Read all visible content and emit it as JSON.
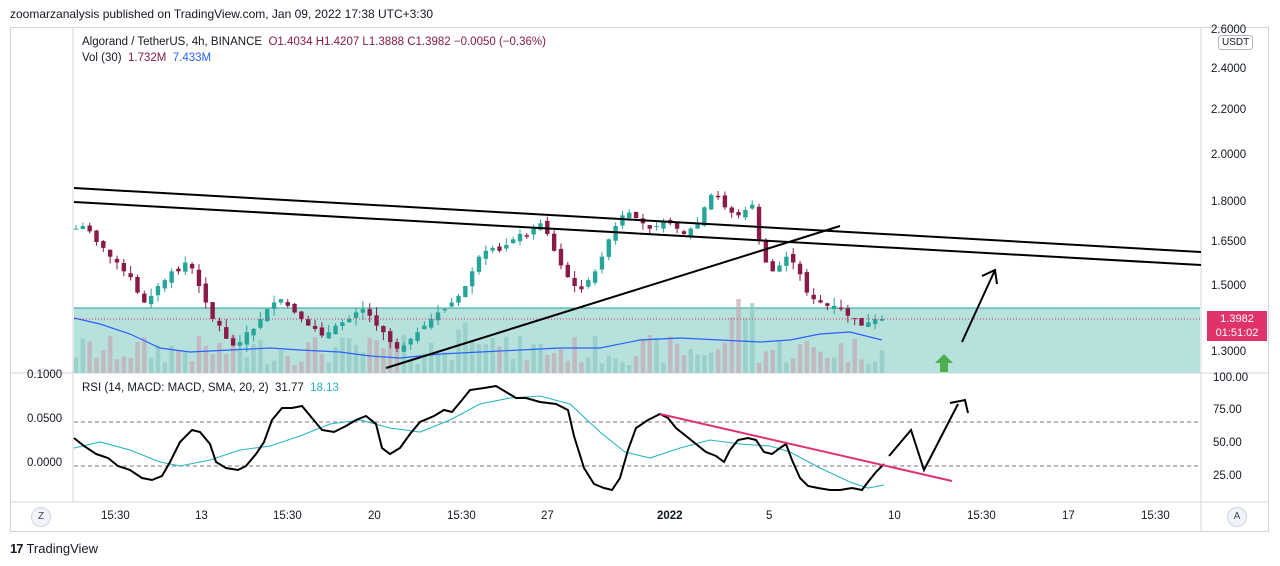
{
  "publisher_line": "zoomarzanalysis published on TradingView.com, Jan 09, 2022 17:38 UTC+3:30",
  "legend": {
    "symbol": "Algorand / TetherUS, 4h, BINANCE",
    "ohlc": "O1.4034  H1.4207  L1.3888  C1.3982  −0.0050 (−0.36%)",
    "vol_label": "Vol (30)",
    "vol_value_1": "1.732M",
    "vol_value_2": "7.433M",
    "rsi_label": "RSI (14, MACD: MACD, SMA, 20, 2)",
    "rsi_value_1": "31.77",
    "rsi_value_2": "18.13"
  },
  "currency_button": "USDT",
  "price_axis": [
    "2.6000",
    "2.4000",
    "2.2000",
    "2.0000",
    "1.8000",
    "1.6500",
    "1.5000",
    "1.3000"
  ],
  "price_tag": {
    "price": "1.3982",
    "countdown": "01:51:02"
  },
  "rsi_axis_right": [
    "100.00",
    "75.00",
    "50.00",
    "25.00"
  ],
  "rsi_axis_left": [
    "0.1000",
    "0.0500",
    "0.0000"
  ],
  "time_axis": [
    "15:30",
    "13",
    "15:30",
    "20",
    "15:30",
    "27",
    "2022",
    "5",
    "10",
    "15:30",
    "17",
    "15:30"
  ],
  "corner_buttons": {
    "left": "Z",
    "right": "A"
  },
  "brand": {
    "logo": "17",
    "name": "TradingView"
  },
  "colors": {
    "up": "#26a69a",
    "down": "#8a1a48",
    "zone": "#b2dfdb",
    "trend_pink": "#e0336a",
    "ma_blue": "#2962ff"
  },
  "chart_data": {
    "type": "candlestick",
    "price_ylim": [
      1.3,
      2.6
    ],
    "close_path": [
      1.7,
      1.71,
      1.69,
      1.65,
      1.63,
      1.6,
      1.58,
      1.55,
      1.53,
      1.48,
      1.45,
      1.47,
      1.5,
      1.52,
      1.55,
      1.55,
      1.58,
      1.56,
      1.5,
      1.45,
      1.4,
      1.38,
      1.34,
      1.32,
      1.33,
      1.36,
      1.37,
      1.4,
      1.43,
      1.45,
      1.46,
      1.44,
      1.42,
      1.4,
      1.38,
      1.37,
      1.35,
      1.36,
      1.38,
      1.39,
      1.4,
      1.42,
      1.43,
      1.41,
      1.38,
      1.36,
      1.33,
      1.31,
      1.32,
      1.34,
      1.36,
      1.38,
      1.4,
      1.42,
      1.43,
      1.45,
      1.47,
      1.5,
      1.55,
      1.6,
      1.62,
      1.63,
      1.62,
      1.64,
      1.66,
      1.68,
      1.67,
      1.7,
      1.72,
      1.68,
      1.62,
      1.57,
      1.53,
      1.5,
      1.49,
      1.52,
      1.55,
      1.6,
      1.66,
      1.71,
      1.75,
      1.76,
      1.74,
      1.72,
      1.7,
      1.71,
      1.73,
      1.72,
      1.7,
      1.68,
      1.7,
      1.72,
      1.78,
      1.83,
      1.82,
      1.78,
      1.76,
      1.75,
      1.77,
      1.79,
      1.66,
      1.58,
      1.55,
      1.57,
      1.6,
      1.58,
      1.54,
      1.48,
      1.46,
      1.45,
      1.44,
      1.44,
      1.43,
      1.41,
      1.4,
      1.38,
      1.39,
      1.4,
      1.4
    ],
    "rsi_ylim": [
      0,
      100
    ]
  }
}
